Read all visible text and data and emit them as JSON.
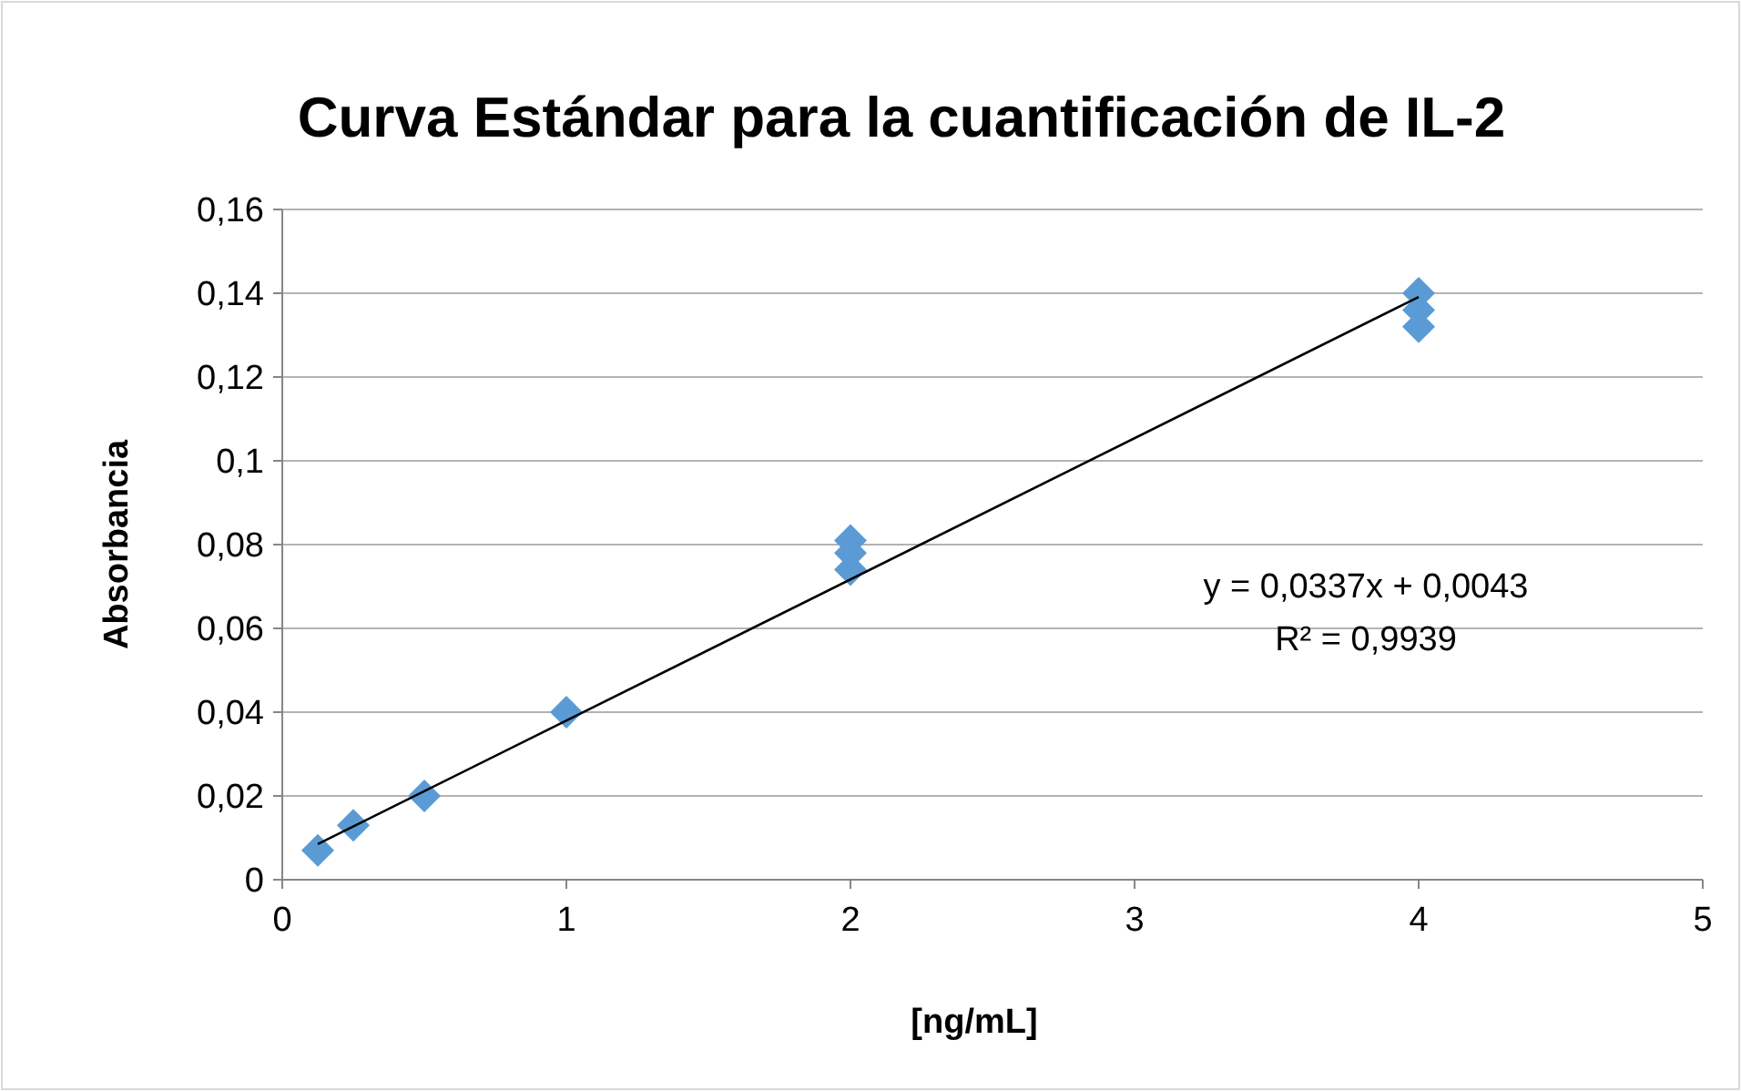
{
  "chart_data": {
    "type": "scatter",
    "title": "Curva Estándar para la cuantificación de IL-2",
    "xlabel": "[ng/mL]",
    "ylabel": "Absorbancia",
    "xlim": [
      0,
      5
    ],
    "xticks": [
      0,
      1,
      2,
      3,
      4,
      5
    ],
    "ylim": [
      0,
      0.16
    ],
    "yticks": [
      {
        "value": 0,
        "label": "0"
      },
      {
        "value": 0.02,
        "label": "0,02"
      },
      {
        "value": 0.04,
        "label": "0,04"
      },
      {
        "value": 0.06,
        "label": "0,06"
      },
      {
        "value": 0.08,
        "label": "0,08"
      },
      {
        "value": 0.1,
        "label": "0,1"
      },
      {
        "value": 0.12,
        "label": "0,12"
      },
      {
        "value": 0.14,
        "label": "0,14"
      },
      {
        "value": 0.16,
        "label": "0,16"
      }
    ],
    "grid": "y",
    "marker": "diamond",
    "series": [
      {
        "color": "#5b9bd5",
        "x": [
          0.125,
          0.25,
          0.5,
          1,
          2,
          2,
          2,
          4,
          4,
          4
        ],
        "values": [
          0.007,
          0.013,
          0.02,
          0.04,
          0.081,
          0.078,
          0.074,
          0.14,
          0.136,
          0.132
        ]
      },
      {
        "type": "line",
        "color": "#000000",
        "marker": "none",
        "x": [
          0.125,
          4
        ],
        "values": [
          0.0085,
          0.1391
        ]
      }
    ],
    "annotations": [
      "y = 0,0337x + 0,0043",
      "R² = 0,9939"
    ]
  }
}
